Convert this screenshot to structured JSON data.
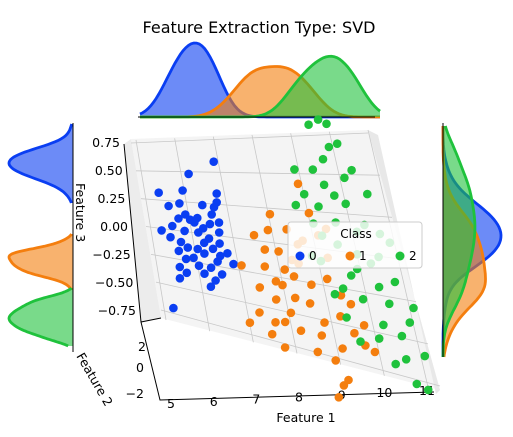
{
  "chart_data": {
    "type": "scatter",
    "title": "Feature Extraction Type: SVD",
    "projection": "3d",
    "xlabel": "Feature 1",
    "ylabel": "Feature 2",
    "zlabel": "Feature 3",
    "xticks": [
      "5",
      "6",
      "7",
      "8",
      "9",
      "10",
      "11"
    ],
    "yticks": [
      "2",
      "0",
      "−2"
    ],
    "zticks": [
      "0.75",
      "0.50",
      "0.25",
      "0.00",
      "−0.25",
      "−0.50",
      "−0.75"
    ],
    "xlim": [
      4.6,
      11.2
    ],
    "zlim": [
      -0.8,
      0.8
    ],
    "grid": true,
    "legend": {
      "title": "Class",
      "placement": "right",
      "entries": [
        "0",
        "1",
        "2"
      ]
    },
    "colors": {
      "0": "#0a3ef2",
      "1": "#f47e0e",
      "2": "#1fc23c"
    },
    "marginal_kde": {
      "top": "density of Feature 1 per class",
      "left": "density of Feature 3 per class",
      "right": "density of Feature 3 per class"
    },
    "series": [
      {
        "name": "0",
        "points": [
          [
            5.3,
            0.22
          ],
          [
            5.5,
            0.12
          ],
          [
            5.3,
            0.05
          ],
          [
            5.6,
            0.02
          ],
          [
            5.0,
            0.0
          ],
          [
            5.2,
            -0.05
          ],
          [
            5.45,
            -0.08
          ],
          [
            5.6,
            -0.12
          ],
          [
            5.35,
            -0.16
          ],
          [
            5.7,
            -0.2
          ],
          [
            5.5,
            -0.22
          ],
          [
            5.8,
            -0.26
          ],
          [
            5.3,
            -0.3
          ],
          [
            5.9,
            -0.32
          ],
          [
            5.25,
            -0.4
          ],
          [
            5.6,
            0.25
          ],
          [
            5.7,
            0.16
          ],
          [
            5.8,
            0.12
          ],
          [
            6.0,
            0.14
          ],
          [
            5.9,
            0.1
          ],
          [
            5.95,
            0.02
          ],
          [
            6.1,
            0.06
          ],
          [
            6.2,
            -0.02
          ],
          [
            6.05,
            -0.06
          ],
          [
            6.25,
            -0.1
          ],
          [
            6.0,
            -0.15
          ],
          [
            6.3,
            -0.2
          ],
          [
            6.1,
            -0.26
          ],
          [
            6.35,
            -0.3
          ],
          [
            6.15,
            -0.36
          ],
          [
            6.5,
            0.24
          ],
          [
            6.4,
            0.18
          ],
          [
            6.6,
            0.28
          ],
          [
            6.55,
            0.12
          ],
          [
            6.5,
            0.04
          ],
          [
            6.45,
            -0.05
          ],
          [
            6.6,
            -0.12
          ],
          [
            6.7,
            -0.2
          ],
          [
            6.75,
            0.6
          ],
          [
            6.65,
            0.35
          ],
          [
            4.95,
            -0.68
          ],
          [
            5.1,
            0.33
          ],
          [
            6.0,
            0.5
          ],
          [
            5.75,
            0.36
          ],
          [
            6.2,
            0.25
          ],
          [
            6.3,
            0.1
          ],
          [
            5.85,
            -0.12
          ],
          [
            6.0,
            -0.42
          ],
          [
            5.45,
            -0.34
          ],
          [
            6.4,
            -0.15
          ]
        ]
      },
      {
        "name": "1",
        "points": [
          [
            7.4,
            0.05
          ],
          [
            7.6,
            -0.05
          ],
          [
            7.5,
            -0.18
          ],
          [
            7.7,
            -0.28
          ],
          [
            7.6,
            -0.42
          ],
          [
            7.45,
            -0.6
          ],
          [
            7.3,
            -0.7
          ],
          [
            7.8,
            0.1
          ],
          [
            7.95,
            -0.05
          ],
          [
            8.0,
            -0.18
          ],
          [
            7.85,
            -0.3
          ],
          [
            8.1,
            -0.38
          ],
          [
            7.9,
            -0.5
          ],
          [
            8.2,
            -0.22
          ],
          [
            8.3,
            0.12
          ],
          [
            8.5,
            0.02
          ],
          [
            8.4,
            -0.12
          ],
          [
            8.6,
            -0.26
          ],
          [
            8.45,
            -0.4
          ],
          [
            8.7,
            -0.52
          ],
          [
            8.55,
            -0.62
          ],
          [
            8.9,
            0.45
          ],
          [
            9.0,
            0.25
          ],
          [
            9.1,
            0.1
          ],
          [
            9.2,
            -0.05
          ],
          [
            9.05,
            -0.2
          ],
          [
            9.3,
            -0.3
          ],
          [
            9.15,
            -0.45
          ],
          [
            9.4,
            -0.55
          ],
          [
            8.75,
            -0.78
          ],
          [
            8.8,
            -0.95
          ],
          [
            8.6,
            -1.05
          ],
          [
            7.25,
            -0.35
          ],
          [
            6.9,
            -0.2
          ],
          [
            6.8,
            -0.65
          ],
          [
            7.1,
            -0.55
          ],
          [
            7.95,
            0.22
          ],
          [
            8.25,
            -0.1
          ],
          [
            8.65,
            0.05
          ],
          [
            9.35,
            0.15
          ],
          [
            9.5,
            -0.35
          ],
          [
            9.6,
            -0.62
          ],
          [
            9.7,
            -0.48
          ],
          [
            9.8,
            -0.65
          ],
          [
            7.7,
            -0.58
          ],
          [
            7.55,
            -0.78
          ],
          [
            8.05,
            -0.62
          ],
          [
            8.35,
            -0.75
          ],
          [
            9.0,
            -0.68
          ],
          [
            8.95,
            -0.9
          ]
        ]
      },
      {
        "name": "2",
        "points": [
          [
            9.6,
            0.85
          ],
          [
            9.9,
            0.88
          ],
          [
            10.1,
            0.85
          ],
          [
            9.75,
            0.62
          ],
          [
            10.25,
            0.72
          ],
          [
            9.4,
            0.55
          ],
          [
            9.0,
            0.38
          ],
          [
            9.3,
            0.3
          ],
          [
            9.8,
            0.38
          ],
          [
            10.05,
            0.33
          ],
          [
            10.4,
            0.2
          ],
          [
            9.65,
            0.2
          ],
          [
            10.15,
            0.15
          ],
          [
            10.75,
            0.15
          ],
          [
            10.55,
            0.0
          ],
          [
            9.2,
            0.1
          ],
          [
            9.55,
            0.05
          ],
          [
            10.0,
            0.0
          ],
          [
            10.3,
            -0.05
          ],
          [
            10.8,
            -0.15
          ],
          [
            9.0,
            -0.08
          ],
          [
            9.7,
            -0.15
          ],
          [
            10.5,
            -0.3
          ],
          [
            10.9,
            -0.4
          ],
          [
            9.85,
            -0.3
          ],
          [
            10.2,
            -0.45
          ],
          [
            10.6,
            -0.5
          ],
          [
            11.05,
            -0.6
          ],
          [
            10.0,
            -0.55
          ],
          [
            9.4,
            -0.25
          ],
          [
            9.3,
            -0.45
          ],
          [
            10.65,
            -0.8
          ],
          [
            10.9,
            -0.82
          ],
          [
            9.6,
            0.45
          ],
          [
            8.9,
            0.55
          ],
          [
            10.2,
            0.5
          ],
          [
            10.7,
            0.4
          ],
          [
            9.05,
            0.18
          ],
          [
            8.8,
            -0.05
          ],
          [
            10.35,
            -0.2
          ],
          [
            10.95,
            0.1
          ],
          [
            9.5,
            -0.6
          ],
          [
            8.7,
            0.3
          ],
          [
            10.0,
            0.7
          ],
          [
            10.45,
            0.55
          ],
          [
            9.15,
            -0.3
          ],
          [
            10.25,
            -0.7
          ],
          [
            9.9,
            -0.1
          ],
          [
            11.1,
            -0.3
          ],
          [
            10.55,
            -0.65
          ]
        ]
      }
    ]
  }
}
